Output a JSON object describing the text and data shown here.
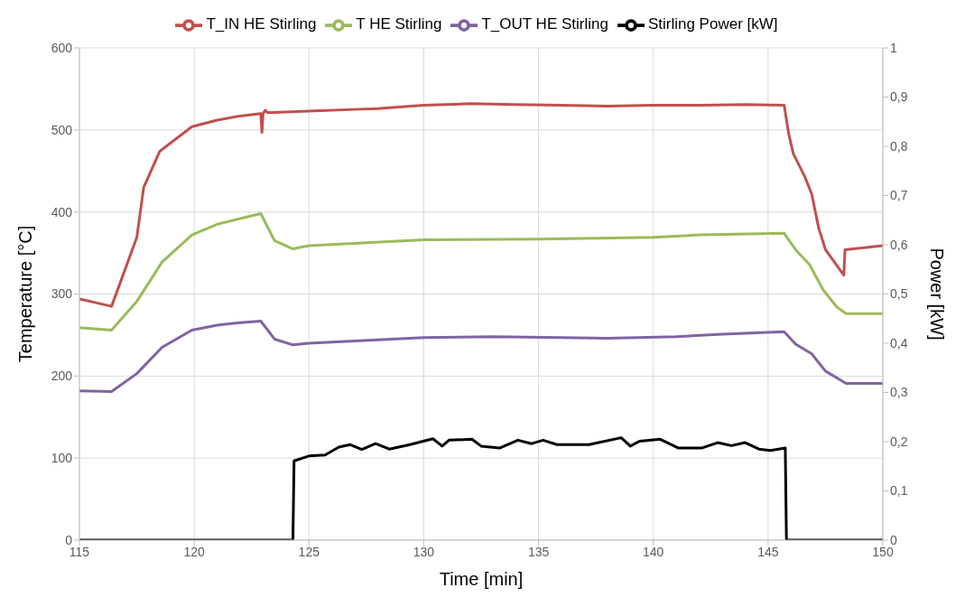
{
  "chart_data": {
    "type": "line",
    "xlabel": "Time [min]",
    "ylabel": "Temperature [°C]",
    "y2label": "Power [kW]",
    "xlim": [
      115,
      150
    ],
    "xticks": [
      115,
      120,
      125,
      130,
      135,
      140,
      145,
      150
    ],
    "ylim": [
      0,
      600
    ],
    "yticks": [
      0,
      100,
      200,
      300,
      400,
      500,
      600
    ],
    "y2lim": [
      0,
      1
    ],
    "y2ticks": [
      {
        "value": 0,
        "label": "0"
      },
      {
        "value": 0.1,
        "label": "0,1"
      },
      {
        "value": 0.2,
        "label": "0,2"
      },
      {
        "value": 0.3,
        "label": "0,3"
      },
      {
        "value": 0.4,
        "label": "0,4"
      },
      {
        "value": 0.5,
        "label": "0,5"
      },
      {
        "value": 0.6,
        "label": "0,6"
      },
      {
        "value": 0.7,
        "label": "0,7"
      },
      {
        "value": 0.8,
        "label": "0,8"
      },
      {
        "value": 0.9,
        "label": "0,9"
      },
      {
        "value": 1,
        "label": "1"
      }
    ],
    "grid": true,
    "legend": "top",
    "marker": "none",
    "line_style": "solid",
    "series": [
      {
        "name": "T_IN HE Stirling",
        "color": "#c0504d",
        "x": [
          115,
          116.4,
          117.5,
          117.8,
          118.5,
          119.9,
          121,
          122,
          122.9,
          122.95,
          123,
          123.1,
          123.2,
          125,
          127,
          128,
          130,
          132,
          134,
          136,
          138,
          140,
          142,
          144,
          145.7,
          145.9,
          146.1,
          146.6,
          146.9,
          147.2,
          147.5,
          148.3,
          148.35,
          150
        ],
        "values": [
          294,
          285,
          369,
          430,
          474,
          504,
          512,
          517,
          520,
          497,
          520,
          524,
          521,
          523,
          525,
          526,
          530,
          532,
          531,
          530,
          529,
          530,
          530,
          531,
          530,
          495,
          471,
          443,
          422,
          381,
          354,
          323,
          354,
          359
        ]
      },
      {
        "name": "T HE Stirling",
        "color": "#9bbb59",
        "x": [
          115,
          116.4,
          117.5,
          118.6,
          119.9,
          121,
          122,
          122.9,
          123.5,
          124.3,
          125,
          130,
          135,
          140,
          142,
          145.7,
          146.2,
          146.8,
          147.4,
          148,
          148.4,
          150
        ],
        "values": [
          259,
          256,
          291,
          339,
          372,
          385,
          392,
          398,
          365,
          355,
          359,
          366,
          367,
          369,
          372,
          374,
          354,
          336,
          305,
          284,
          276,
          276
        ]
      },
      {
        "name": "T_OUT HE Stirling",
        "color": "#8064a2",
        "x": [
          115,
          116.4,
          117.5,
          118.6,
          119.9,
          121,
          122,
          122.9,
          123.5,
          124.3,
          125,
          130,
          133,
          136,
          138,
          141,
          143,
          145.7,
          146.2,
          146.9,
          147.5,
          148.4,
          150
        ],
        "values": [
          182,
          181,
          203,
          235,
          256,
          262,
          265,
          267,
          245,
          238,
          240,
          247,
          248,
          247,
          246,
          248,
          251,
          254,
          239,
          227,
          206,
          191,
          191
        ]
      },
      {
        "name": "Stirling Power [kW]",
        "color": "#000000",
        "axis": "y2",
        "x": [
          115,
          124.3,
          124.35,
          125,
          125.7,
          126.3,
          126.8,
          127.3,
          127.9,
          128.5,
          129.4,
          130.4,
          130.8,
          131.1,
          132.1,
          132.5,
          133.3,
          134.1,
          134.7,
          135.2,
          135.8,
          137.2,
          138.6,
          139,
          139.4,
          140.3,
          141.1,
          142.1,
          142.8,
          143.4,
          144,
          144.6,
          145.1,
          145.75,
          145.8,
          150
        ],
        "values": [
          0,
          0,
          0.161,
          0.171,
          0.173,
          0.189,
          0.194,
          0.184,
          0.196,
          0.185,
          0.194,
          0.206,
          0.191,
          0.203,
          0.205,
          0.191,
          0.187,
          0.203,
          0.196,
          0.203,
          0.194,
          0.194,
          0.208,
          0.191,
          0.201,
          0.205,
          0.187,
          0.187,
          0.198,
          0.192,
          0.198,
          0.185,
          0.182,
          0.187,
          0,
          0
        ]
      }
    ]
  }
}
